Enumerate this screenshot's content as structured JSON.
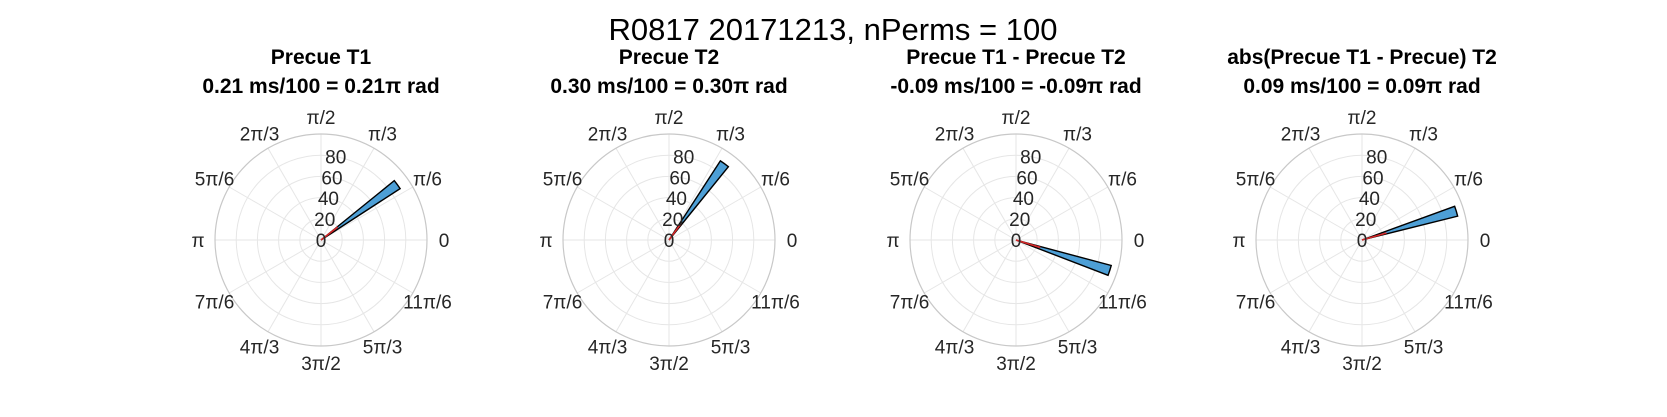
{
  "figure_title": "R0817 20171213, nPerms = 100",
  "colors": {
    "bar_fill": "#4d9fd6",
    "bar_edge": "#000000",
    "mean_line": "#d62728",
    "grid": "#e6e6e6"
  },
  "chart_data": [
    {
      "type": "polar-histogram",
      "title": "Precue T1",
      "subtitle": "0.21 ms/100 = 0.21π rad",
      "theta_labels": [
        "0",
        "π/6",
        "π/3",
        "π/2",
        "2π/3",
        "5π/6",
        "π",
        "7π/6",
        "4π/3",
        "3π/2",
        "5π/3",
        "11π/6"
      ],
      "r_ticks": [
        0,
        20,
        40,
        60,
        80
      ],
      "rlim": [
        0,
        100
      ],
      "bars": [
        {
          "theta_deg_from": 33,
          "theta_deg_to": 39,
          "count": 89
        }
      ],
      "mean_angle_deg": 38,
      "mean_length": 20
    },
    {
      "type": "polar-histogram",
      "title": "Precue T2",
      "subtitle": "0.30 ms/100 = 0.30π rad",
      "theta_labels": [
        "0",
        "π/6",
        "π/3",
        "π/2",
        "2π/3",
        "5π/6",
        "π",
        "7π/6",
        "4π/3",
        "3π/2",
        "5π/3",
        "11π/6"
      ],
      "r_ticks": [
        0,
        20,
        40,
        60,
        80
      ],
      "rlim": [
        0,
        100
      ],
      "bars": [
        {
          "theta_deg_from": 51,
          "theta_deg_to": 57,
          "count": 89
        }
      ],
      "mean_angle_deg": 54,
      "mean_length": 20
    },
    {
      "type": "polar-histogram",
      "title": "Precue T1 - Precue T2",
      "subtitle": "-0.09 ms/100 = -0.09π rad",
      "theta_labels": [
        "0",
        "π/6",
        "π/3",
        "π/2",
        "2π/3",
        "5π/6",
        "π",
        "7π/6",
        "4π/3",
        "3π/2",
        "5π/3",
        "11π/6"
      ],
      "r_ticks": [
        0,
        20,
        40,
        60,
        80
      ],
      "rlim": [
        0,
        100
      ],
      "bars": [
        {
          "theta_deg_from": 339,
          "theta_deg_to": 345,
          "count": 93
        }
      ],
      "mean_angle_deg": 343,
      "mean_length": 24
    },
    {
      "type": "polar-histogram",
      "title": "abs(Precue T1 - Precue) T2",
      "subtitle": "0.09 ms/100 = 0.09π rad",
      "theta_labels": [
        "0",
        "π/6",
        "π/3",
        "π/2",
        "2π/3",
        "5π/6",
        "π",
        "7π/6",
        "4π/3",
        "3π/2",
        "5π/3",
        "11π/6"
      ],
      "r_ticks": [
        0,
        20,
        40,
        60,
        80
      ],
      "rlim": [
        0,
        100
      ],
      "bars": [
        {
          "theta_deg_from": 14,
          "theta_deg_to": 20,
          "count": 93
        }
      ],
      "mean_angle_deg": 16,
      "mean_length": 24
    }
  ]
}
